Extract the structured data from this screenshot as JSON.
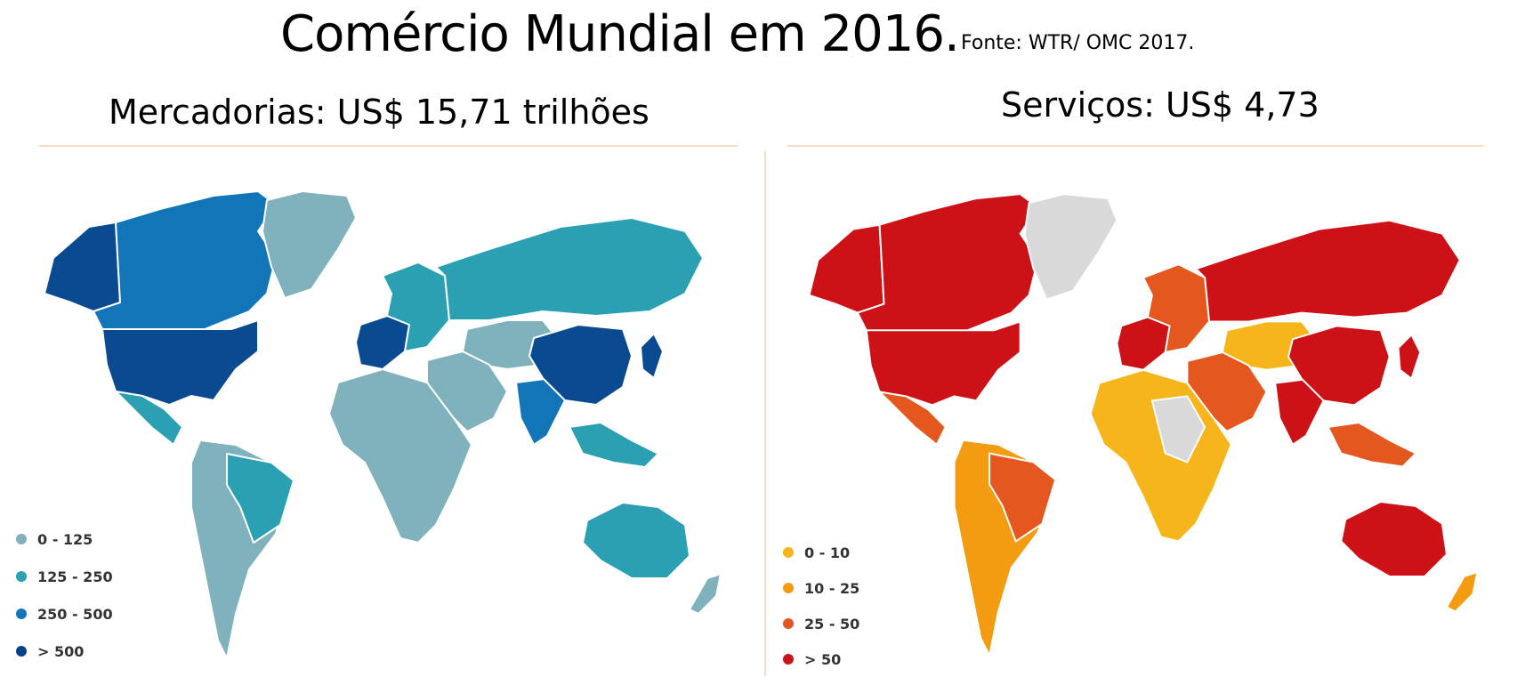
{
  "title": "Comércio Mundial em 2016.",
  "source": "Fonte: WTR/ OMC 2017.",
  "panels": {
    "goods": {
      "title": "Mercadorias: US$ 15,71 trilhões",
      "legend": [
        {
          "label": "0 - 125",
          "color": "#7fb2bc"
        },
        {
          "label": "125 - 250",
          "color": "#2aa0b2"
        },
        {
          "label": "250 - 500",
          "color": "#1275b8"
        },
        {
          "label": "> 500",
          "color": "#0a3f8c"
        }
      ],
      "regions": {
        "north_america": "#1275b8",
        "usa": "#0a4a90",
        "alaska": "#0a4a90",
        "mexico": "#2aa0b2",
        "greenland": "#7fb2bc",
        "south_america": "#7fb2bc",
        "brazil": "#2aa0b2",
        "western_europe": "#0a4a90",
        "europe_other": "#2aa0b2",
        "russia": "#2aa0b2",
        "central_asia": "#7fb2bc",
        "middle_east": "#7fb2bc",
        "africa": "#7fb2bc",
        "india": "#1275b8",
        "china": "#0a4a90",
        "japan": "#0a4a90",
        "southeast_asia": "#2aa0b2",
        "australia": "#2aa0b2",
        "new_zealand": "#7fb2bc"
      }
    },
    "services": {
      "title": "Serviços: US$ 4,73",
      "legend": [
        {
          "label": "0 - 10",
          "color": "#f5b51b"
        },
        {
          "label": "10 - 25",
          "color": "#f39c12"
        },
        {
          "label": "25 - 50",
          "color": "#e4571e"
        },
        {
          "label": "> 50",
          "color": "#c8141a"
        }
      ],
      "regions": {
        "north_america": "#cc1216",
        "usa": "#cc1216",
        "alaska": "#cc1216",
        "mexico": "#e4571e",
        "greenland": "#d9d9d9",
        "south_america": "#f39c12",
        "brazil": "#e4571e",
        "western_europe": "#cc1216",
        "europe_other": "#e4571e",
        "russia": "#cc1216",
        "central_asia": "#f5b51b",
        "middle_east": "#e4571e",
        "africa": "#f5b51b",
        "africa_grey": "#d9d9d9",
        "india": "#cc1216",
        "china": "#cc1216",
        "japan": "#cc1216",
        "southeast_asia": "#e4571e",
        "australia": "#cc1216",
        "new_zealand": "#f39c12"
      }
    }
  }
}
